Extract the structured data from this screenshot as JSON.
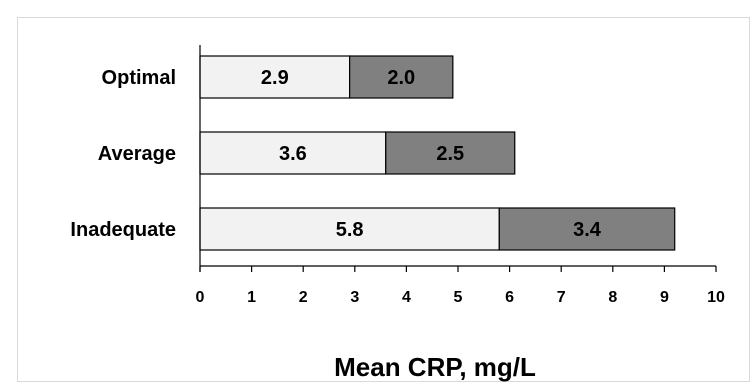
{
  "chart_data": {
    "type": "bar",
    "orientation": "horizontal",
    "stacked": true,
    "categories": [
      "Optimal",
      "Average",
      "Inadequate"
    ],
    "series": [
      {
        "values": [
          2.9,
          3.6,
          5.8
        ],
        "color": "#f2f2f2"
      },
      {
        "values": [
          2.0,
          2.5,
          3.4
        ],
        "color": "#808080"
      }
    ],
    "data_labels": [
      [
        "2.9",
        "3.6",
        "5.8"
      ],
      [
        "2.0",
        "2.5",
        "3.4"
      ]
    ],
    "xlabel": "Mean CRP, mg/L",
    "xlim": [
      0,
      10
    ],
    "xticks": [
      "0",
      "1",
      "2",
      "3",
      "4",
      "5",
      "6",
      "7",
      "8",
      "9",
      "10"
    ],
    "grid": false
  }
}
